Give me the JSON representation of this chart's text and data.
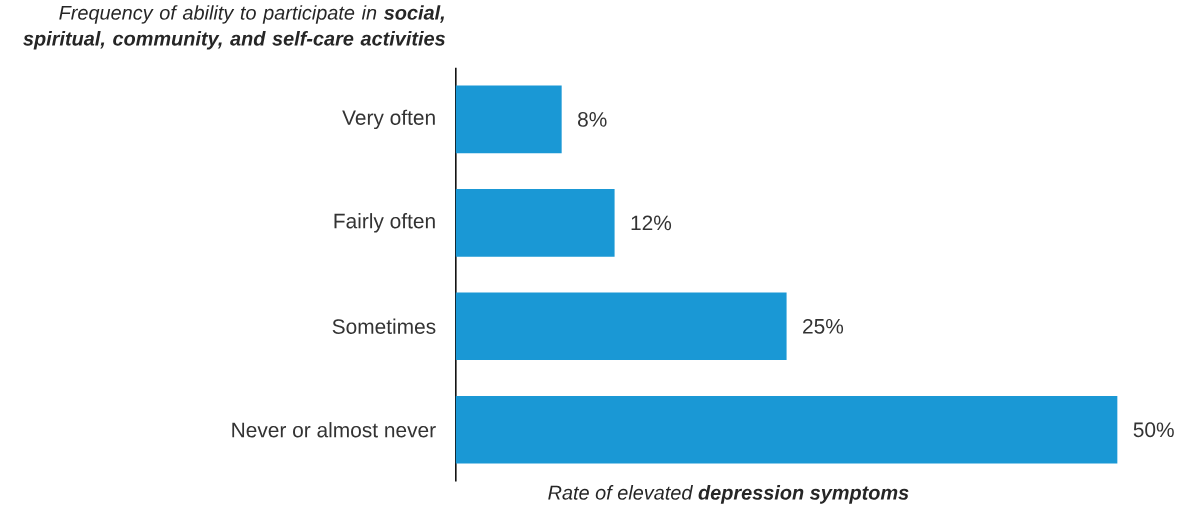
{
  "chart_data": {
    "type": "bar",
    "orientation": "horizontal",
    "ylabel": "Frequency of ability to participate in **social, spiritual, community, and self-care activities**",
    "xlabel": "Rate of elevated **depression symptoms**",
    "categories": [
      "Very often",
      "Fairly often",
      "Sometimes",
      "Never or almost never"
    ],
    "values": [
      8,
      12,
      25,
      50
    ],
    "value_labels": [
      "8%",
      "12%",
      "25%",
      "50%"
    ],
    "color": "#1a98d5"
  }
}
